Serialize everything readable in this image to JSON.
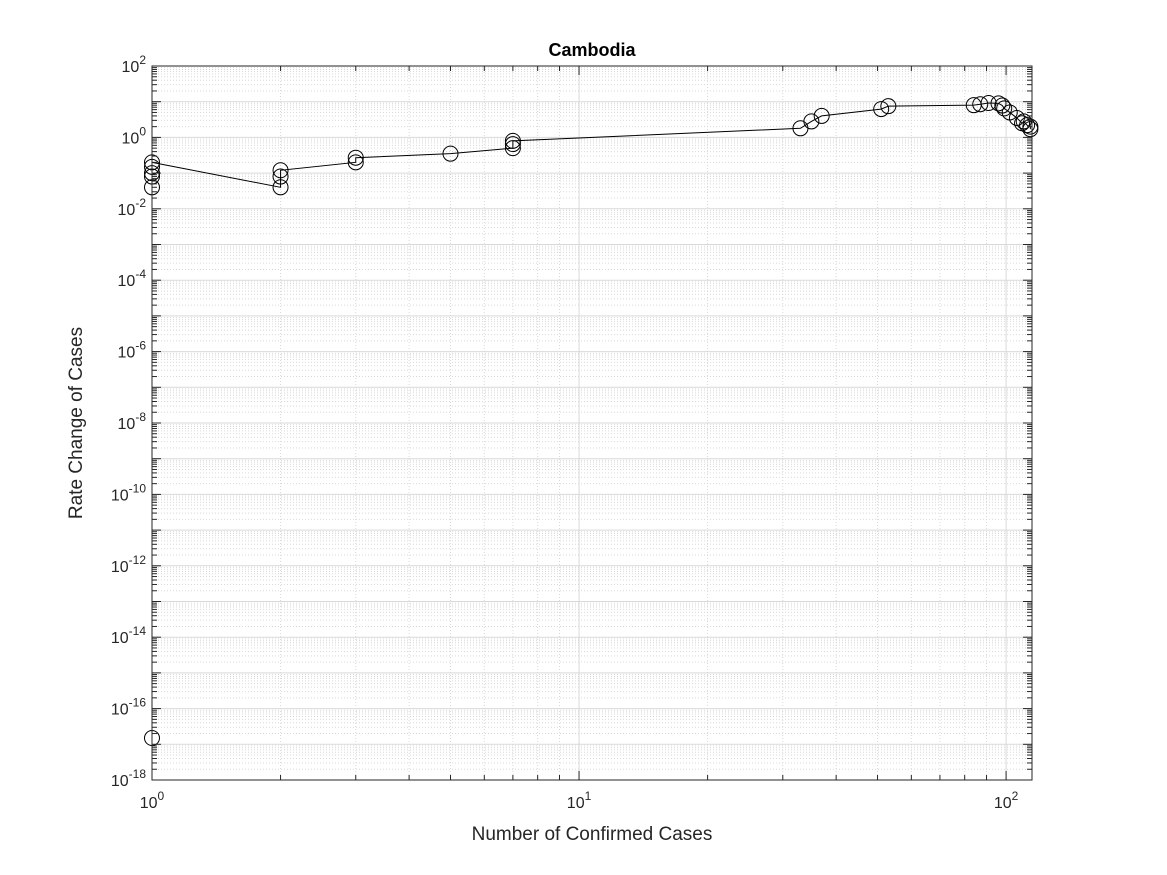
{
  "chart_data": {
    "type": "line",
    "title": "Cambodia",
    "xlabel": "Number of Confirmed Cases",
    "ylabel": "Rate Change of Cases",
    "x_scale": "log",
    "y_scale": "log",
    "xlim": [
      1,
      115
    ],
    "ylim": [
      1e-18,
      100
    ],
    "grid": true,
    "minor_grid": true,
    "marker": "circle",
    "colors": {
      "line": "#000000",
      "marker": "#000000",
      "grid": "#d9d9d9",
      "axis": "#262626"
    },
    "x_ticks": [
      {
        "value": 1,
        "base": "10",
        "exp": "0"
      },
      {
        "value": 10,
        "base": "10",
        "exp": "1"
      },
      {
        "value": 100,
        "base": "10",
        "exp": "2"
      }
    ],
    "y_ticks": [
      {
        "value": 1e-18,
        "base": "10",
        "exp": "-18"
      },
      {
        "value": 1e-16,
        "base": "10",
        "exp": "-16"
      },
      {
        "value": 1e-14,
        "base": "10",
        "exp": "-14"
      },
      {
        "value": 1e-12,
        "base": "10",
        "exp": "-12"
      },
      {
        "value": 1e-10,
        "base": "10",
        "exp": "-10"
      },
      {
        "value": 1e-08,
        "base": "10",
        "exp": "-8"
      },
      {
        "value": 1e-06,
        "base": "10",
        "exp": "-6"
      },
      {
        "value": 0.0001,
        "base": "10",
        "exp": "-4"
      },
      {
        "value": 0.01,
        "base": "10",
        "exp": "-2"
      },
      {
        "value": 1,
        "base": "10",
        "exp": "0"
      },
      {
        "value": 100,
        "base": "10",
        "exp": "2"
      }
    ],
    "series": [
      {
        "x": [
          1,
          1,
          1,
          1,
          1,
          1,
          2,
          2,
          2,
          3,
          3,
          5,
          7,
          7,
          7,
          33,
          35,
          37,
          51,
          53,
          84,
          87,
          91,
          96,
          98,
          99,
          102,
          106,
          109,
          110,
          112,
          114,
          114
        ],
        "y": [
          1.5e-17,
          0.04,
          0.08,
          0.1,
          0.15,
          0.2,
          0.04,
          0.08,
          0.12,
          0.2,
          0.27,
          0.35,
          0.5,
          0.65,
          0.8,
          1.8,
          2.8,
          4.0,
          6.2,
          7.5,
          8.0,
          8.5,
          9.2,
          9.0,
          7.8,
          6.5,
          5.0,
          3.5,
          2.5,
          2.8,
          2.2,
          2.0,
          1.7
        ]
      }
    ]
  }
}
